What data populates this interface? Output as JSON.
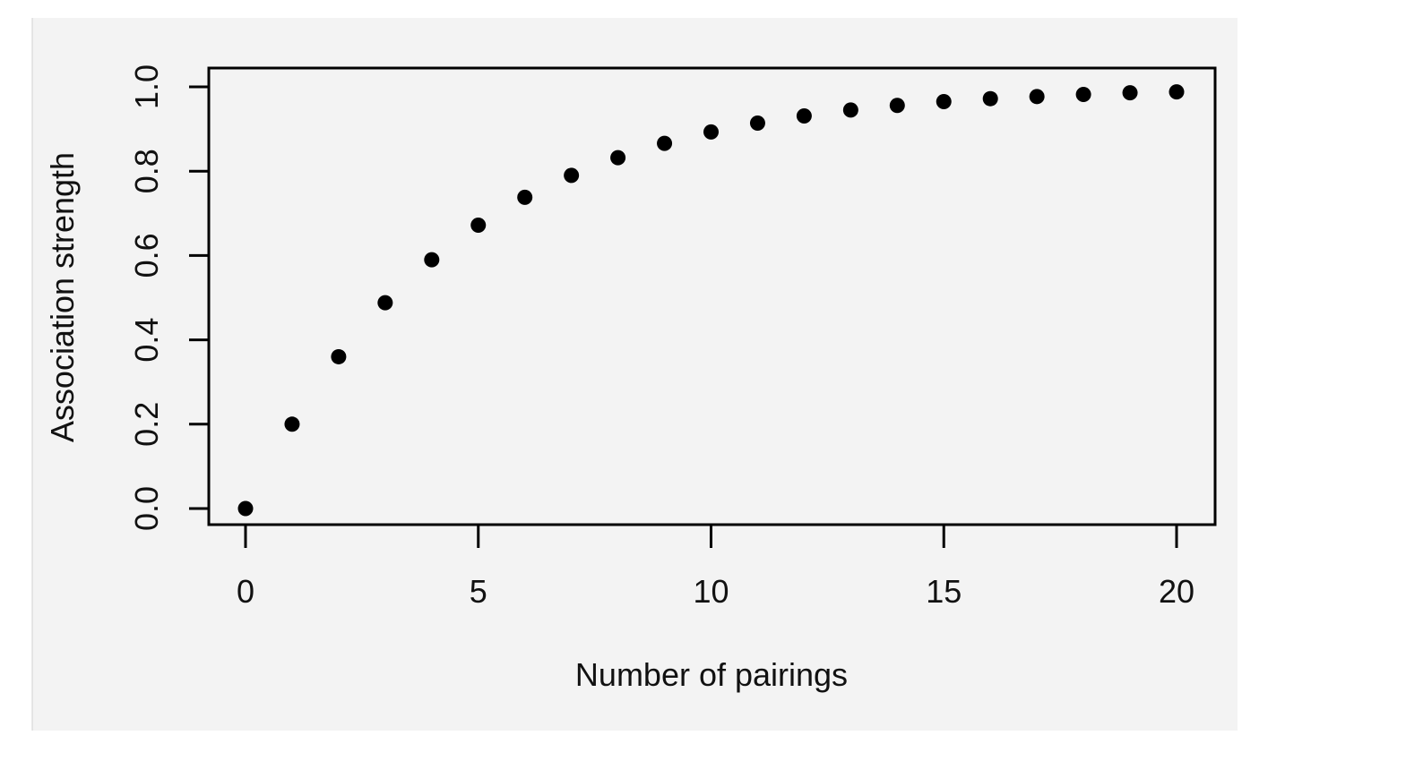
{
  "colors": {
    "panel_background": "#f3f3f3",
    "page_background": "#ffffff",
    "ink": "#000000"
  },
  "chart_data": {
    "type": "scatter",
    "xlabel": "Number of pairings",
    "ylabel": "Association strength",
    "xlim": [
      0,
      20
    ],
    "ylim": [
      0.0,
      1.0
    ],
    "x_ticks": [
      0,
      5,
      10,
      15,
      20
    ],
    "y_ticks": [
      0.0,
      0.2,
      0.4,
      0.6,
      0.8,
      1.0
    ],
    "x_tick_labels": [
      "0",
      "5",
      "10",
      "15",
      "20"
    ],
    "y_tick_labels": [
      "0.0",
      "0.2",
      "0.4",
      "0.6",
      "0.8",
      "1.0"
    ],
    "grid": false,
    "legend": "none",
    "series": [
      {
        "x": [
          0,
          1,
          2,
          3,
          4,
          5,
          6,
          7,
          8,
          9,
          10,
          11,
          12,
          13,
          14,
          15,
          16,
          17,
          18,
          19,
          20
        ],
        "y": [
          0.0,
          0.2,
          0.36,
          0.488,
          0.59,
          0.672,
          0.738,
          0.79,
          0.832,
          0.866,
          0.893,
          0.914,
          0.931,
          0.945,
          0.956,
          0.965,
          0.972,
          0.977,
          0.982,
          0.986,
          0.988
        ]
      }
    ]
  }
}
